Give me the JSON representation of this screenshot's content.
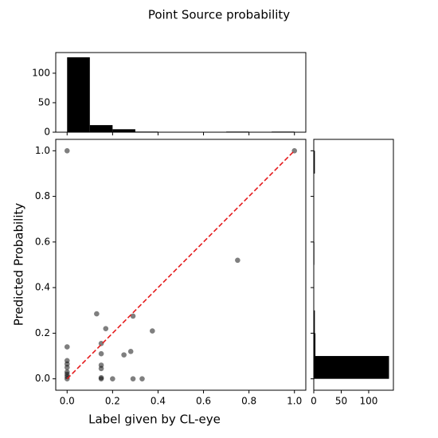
{
  "chart_data": [
    {
      "type": "histogram",
      "orientation": "vertical",
      "bins": [
        0,
        0.1,
        0.2,
        0.3,
        0.4,
        0.5,
        0.6,
        0.7,
        0.8,
        0.9,
        1.0
      ],
      "counts": [
        127,
        12,
        5,
        1,
        0,
        0,
        0,
        1,
        0,
        1
      ],
      "color": "#000000",
      "xlim": [
        -0.05,
        1.05
      ],
      "ylim": [
        0,
        135
      ],
      "yticks": [
        0,
        50,
        100
      ]
    },
    {
      "type": "scatter",
      "title": "Point Source probability",
      "x_label": "Label given by CL-eye",
      "y_label": "Predicted Probability",
      "x": [
        0,
        1,
        0.75,
        0.13,
        0.15,
        0.17,
        0.29,
        0.375,
        0.25,
        0.28,
        0.15,
        0.15,
        0.15,
        0.15,
        0.15,
        0.2,
        0.29,
        0.33,
        0,
        0,
        0,
        0,
        0,
        0,
        0,
        0
      ],
      "y": [
        1.0,
        1.0,
        0.52,
        0.285,
        0.155,
        0.22,
        0.275,
        0.21,
        0.105,
        0.12,
        0.11,
        0.06,
        0.045,
        0.005,
        0.0,
        0.0,
        0.0,
        0.0,
        0.14,
        0.08,
        0.065,
        0.05,
        0.03,
        0.02,
        0.01,
        0.0
      ],
      "color": "#000000",
      "alpha": 0.5,
      "xlim": [
        -0.05,
        1.05
      ],
      "ylim": [
        -0.05,
        1.05
      ],
      "xticks": [
        {
          "value": 0,
          "label": "0.0"
        },
        {
          "value": 0.2,
          "label": "0.2"
        },
        {
          "value": 0.4,
          "label": "0.4"
        },
        {
          "value": 0.6,
          "label": "0.6"
        },
        {
          "value": 0.8,
          "label": "0.8"
        },
        {
          "value": 1,
          "label": "1.0"
        }
      ],
      "yticks": [
        {
          "value": 0,
          "label": "0.0"
        },
        {
          "value": 0.2,
          "label": "0.2"
        },
        {
          "value": 0.4,
          "label": "0.4"
        },
        {
          "value": 0.6,
          "label": "0.6"
        },
        {
          "value": 0.8,
          "label": "0.8"
        },
        {
          "value": 1,
          "label": "1.0"
        }
      ],
      "reference_line": {
        "x": [
          0,
          1
        ],
        "y": [
          0,
          1
        ],
        "color": "#e41a1c"
      }
    },
    {
      "type": "histogram",
      "orientation": "horizontal",
      "bins": [
        0,
        0.1,
        0.2,
        0.3,
        0.4,
        0.5,
        0.6,
        0.7,
        0.8,
        0.9,
        1.0
      ],
      "counts": [
        137,
        3,
        2,
        0,
        0,
        1,
        0,
        0,
        0,
        2
      ],
      "color": "#000000",
      "xlim": [
        0,
        145
      ],
      "xticks": [
        0,
        50,
        100
      ],
      "ylim": [
        -0.05,
        1.05
      ]
    }
  ]
}
